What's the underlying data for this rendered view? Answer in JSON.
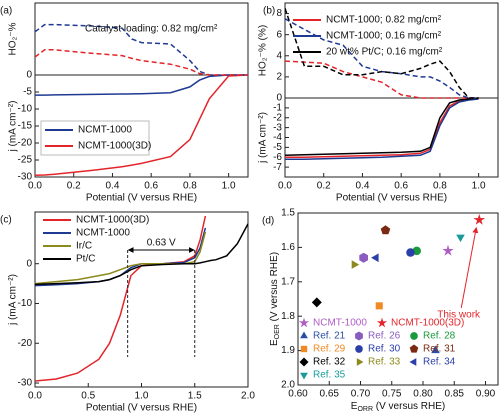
{
  "chart_data": [
    {
      "type": "line",
      "panel": "(a)",
      "xlabel": "Potential (V versus RHE)",
      "ylabel": "j (mA cm⁻²)",
      "y2label": "HO₂⁻%",
      "annotation": "Catalyst loading: 0.82 mg/cm²",
      "xlim": [
        0,
        1.1
      ],
      "xticks": [
        {
          "value": 0,
          "label": "0.0"
        },
        {
          "value": 0.2,
          "label": "0.2"
        },
        {
          "value": 0.4,
          "label": "0.4"
        },
        {
          "value": 0.6,
          "label": "0.6"
        },
        {
          "value": 0.8,
          "label": "0.8"
        },
        {
          "value": 1,
          "label": "1.0"
        }
      ],
      "ylim": [
        -30,
        0
      ],
      "yticks": [
        -30,
        -25,
        -20,
        -15,
        -10,
        -5,
        0
      ],
      "y2lim": [
        0,
        10
      ],
      "x": [
        0,
        0.05,
        0.1,
        0.3,
        0.45,
        0.5,
        0.55,
        0.7,
        0.8,
        0.85,
        0.9,
        1.0,
        1.1
      ],
      "series": [
        {
          "name": "NCMT-1000",
          "color": "#1f3a93",
          "values": [
            -5.9,
            -5.9,
            -5.85,
            -5.7,
            -5.6,
            -5.55,
            -5.5,
            -5.2,
            -3.5,
            -1.5,
            -0.4,
            0,
            0
          ]
        },
        {
          "name": "NCMT-1000(3D)",
          "color": "#e3252b",
          "values": [
            -29.5,
            -29.4,
            -29.2,
            -28,
            -27,
            -26.5,
            -26,
            -24,
            -19,
            -13,
            -7,
            -0.3,
            0
          ]
        },
        {
          "color": "#1f3a93",
          "dashed": true,
          "axis": "y2",
          "values": [
            6,
            7,
            7,
            6.8,
            6.5,
            5,
            4.5,
            4.3,
            2,
            0.5,
            0,
            0,
            0
          ]
        },
        {
          "color": "#e3252b",
          "dashed": true,
          "axis": "y2",
          "values": [
            2.5,
            3.5,
            3.5,
            3,
            2.7,
            2.3,
            2,
            1.5,
            0.8,
            0.2,
            0,
            0,
            0
          ]
        }
      ]
    },
    {
      "type": "line",
      "panel": "(b)",
      "xlabel": "Potential (V versus RHE)",
      "ylabel": "j (mA cm⁻²)",
      "y2label": "HO₂⁻% (%)",
      "xlim": [
        0,
        1.1
      ],
      "xticks": [
        {
          "value": 0,
          "label": "0.0"
        },
        {
          "value": 0.2,
          "label": "0.2"
        },
        {
          "value": 0.4,
          "label": "0.4"
        },
        {
          "value": 0.6,
          "label": "0.6"
        },
        {
          "value": 0.8,
          "label": "0.8"
        },
        {
          "value": 1,
          "label": "1.0"
        }
      ],
      "ylim": [
        -8,
        0
      ],
      "yticks": [
        -7,
        -6,
        -5,
        -4,
        -3,
        -2,
        -1,
        0
      ],
      "y2lim": [
        0,
        9
      ],
      "y2ticks": [
        2,
        4,
        6,
        8
      ],
      "x": [
        0,
        0.1,
        0.2,
        0.3,
        0.4,
        0.5,
        0.6,
        0.7,
        0.75,
        0.8,
        0.85,
        0.9,
        0.95,
        1.0
      ],
      "series": [
        {
          "name": "NCMT-1000; 0.82 mg/cm²",
          "color": "#e3252b",
          "values": [
            -6,
            -6,
            -5.95,
            -5.9,
            -5.85,
            -5.8,
            -5.75,
            -5.6,
            -5.2,
            -2.5,
            -0.8,
            -0.3,
            -0.1,
            0
          ]
        },
        {
          "name": "NCMT-1000; 0.16 mg/cm²",
          "color": "#1f3a93",
          "values": [
            -6.2,
            -6.2,
            -6.15,
            -6.1,
            -6.05,
            -6,
            -5.9,
            -5.8,
            -5.4,
            -2.8,
            -1,
            -0.4,
            -0.2,
            -0.1
          ]
        },
        {
          "name": "20 wt% Pt/C; 0.16 mg/cm²",
          "color": "#000000",
          "values": [
            -5.8,
            -5.75,
            -5.7,
            -5.65,
            -5.6,
            -5.55,
            -5.5,
            -5.4,
            -5,
            -2,
            -0.5,
            -0.2,
            -0.1,
            0
          ]
        },
        {
          "color": "#e3252b",
          "dashed": true,
          "axis": "y2",
          "values": [
            3.5,
            3.4,
            3.3,
            2.5,
            2,
            1.5,
            0.3,
            0,
            0,
            0,
            0,
            0,
            0,
            0
          ]
        },
        {
          "color": "#1f3a93",
          "dashed": true,
          "axis": "y2",
          "values": [
            7.5,
            6.5,
            5.5,
            5,
            3,
            2.5,
            2.3,
            2,
            2,
            1.6,
            1,
            0.3,
            0,
            0
          ]
        },
        {
          "color": "#000000",
          "dashed": true,
          "axis": "y2",
          "values": [
            8.5,
            3,
            3,
            2.2,
            2.2,
            2.5,
            2.3,
            2.8,
            3.2,
            3.5,
            2.5,
            1,
            0,
            0
          ]
        }
      ]
    },
    {
      "type": "line",
      "panel": "(c)",
      "xlabel": "Potential (V versus RHE)",
      "ylabel": "j (mA cm⁻²)",
      "annotation": {
        "text": "0.63 V",
        "x": [
          0.87,
          1.5
        ]
      },
      "xlim": [
        0,
        2
      ],
      "xticks": [
        {
          "value": 0,
          "label": "0.0"
        },
        {
          "value": 0.5,
          "label": "0.5"
        },
        {
          "value": 1,
          "label": "1.0"
        },
        {
          "value": 1.5,
          "label": "1.5"
        },
        {
          "value": 2,
          "label": "2.0"
        }
      ],
      "ylim": [
        -31,
        13
      ],
      "yticks": [
        -30,
        -20,
        -10,
        0
      ],
      "x": [
        0,
        0.2,
        0.4,
        0.6,
        0.7,
        0.8,
        0.9,
        1.0,
        1.2,
        1.4,
        1.5,
        1.55,
        1.6,
        1.65,
        1.7,
        1.8,
        1.9,
        2.0
      ],
      "series": [
        {
          "name": "NCMT-1000(3D)",
          "color": "#e3252b",
          "values": [
            -29.5,
            -29,
            -27.5,
            -24,
            -20,
            -13,
            -3,
            -0.5,
            0,
            0.5,
            2,
            6,
            12,
            null,
            null,
            null,
            null,
            null
          ]
        },
        {
          "name": "NCMT-1000",
          "color": "#1f3a93",
          "values": [
            -5.5,
            -5.3,
            -5,
            -4.5,
            -4,
            -3,
            -1,
            0,
            0,
            0.3,
            1.5,
            4,
            9,
            null,
            null,
            null,
            null,
            null
          ]
        },
        {
          "name": "Ir/C",
          "color": "#8c8a1c",
          "values": [
            -5,
            -4.5,
            -4,
            -3,
            -2.5,
            -1.5,
            -0.5,
            0,
            0,
            0,
            0.5,
            3,
            8,
            null,
            null,
            null,
            null,
            null
          ]
        },
        {
          "name": "Pt/C",
          "color": "#000000",
          "values": [
            -5.2,
            -5,
            -4.8,
            -4.5,
            -4,
            -3,
            -1.5,
            -0.5,
            -0.2,
            0,
            0,
            0.2,
            0.5,
            0.8,
            1,
            2,
            5,
            10
          ]
        }
      ]
    },
    {
      "type": "scatter",
      "panel": "(d)",
      "xlabel": {
        "symbol": "E",
        "sub": "ORR",
        "rest": " (V versus RHE)"
      },
      "ylabel": {
        "symbol": "E",
        "sub": "OER",
        "rest": " (V versus RHE)"
      },
      "annotation": "This work",
      "xlim": [
        0.6,
        0.92
      ],
      "xticks": [
        {
          "value": 0.6,
          "label": "0.60"
        },
        {
          "value": 0.65,
          "label": "0.65"
        },
        {
          "value": 0.7,
          "label": "0.70"
        },
        {
          "value": 0.75,
          "label": "0.75"
        },
        {
          "value": 0.8,
          "label": "0.80"
        },
        {
          "value": 0.85,
          "label": "0.85"
        },
        {
          "value": 0.9,
          "label": "0.90"
        }
      ],
      "ylim": [
        2,
        1.5
      ],
      "yticks": [
        1.5,
        1.6,
        1.7,
        1.8,
        1.9,
        {
          "value": 2,
          "label": "2.0"
        }
      ],
      "series": [
        {
          "name": "NCMT-1000",
          "color": "#b05cc4",
          "marker": "star",
          "x": [
            0.84
          ],
          "values": [
            1.61
          ]
        },
        {
          "name": "NCMT-1000(3D)",
          "color": "#e3252b",
          "marker": "star",
          "x": [
            0.89
          ],
          "values": [
            1.52
          ]
        },
        {
          "name": "Ref. 21",
          "color": "#2b4ea8",
          "marker": "triangle-up",
          "x": [
            0.82
          ],
          "values": [
            1.9
          ]
        },
        {
          "name": "Ref. 26",
          "color": "#8a5cc0",
          "marker": "hexagon",
          "x": [
            0.705
          ],
          "values": [
            1.63
          ]
        },
        {
          "name": "Ref. 28",
          "color": "#1a9a3a",
          "marker": "circle",
          "x": [
            0.79
          ],
          "values": [
            1.61
          ]
        },
        {
          "name": "Ref. 29",
          "color": "#f08a24",
          "marker": "square",
          "x": [
            0.73
          ],
          "values": [
            1.77
          ]
        },
        {
          "name": "Ref. 30",
          "color": "#2b3fa8",
          "marker": "circle",
          "x": [
            0.78
          ],
          "values": [
            1.615
          ]
        },
        {
          "name": "Ref. 31",
          "color": "#7a2a12",
          "marker": "pentagon",
          "x": [
            0.74
          ],
          "values": [
            1.55
          ]
        },
        {
          "name": "Ref. 32",
          "color": "#000000",
          "marker": "diamond",
          "x": [
            0.63
          ],
          "values": [
            1.76
          ]
        },
        {
          "name": "Ref. 33",
          "color": "#8c8a1c",
          "marker": "triangle-right",
          "x": [
            0.69
          ],
          "values": [
            1.65
          ]
        },
        {
          "name": "Ref. 34",
          "color": "#2b3fa8",
          "marker": "triangle-left",
          "x": [
            0.725
          ],
          "values": [
            1.63
          ]
        },
        {
          "name": "Ref. 35",
          "color": "#1a9a9a",
          "marker": "triangle-down",
          "x": [
            0.86
          ],
          "values": [
            1.57
          ]
        }
      ]
    }
  ]
}
